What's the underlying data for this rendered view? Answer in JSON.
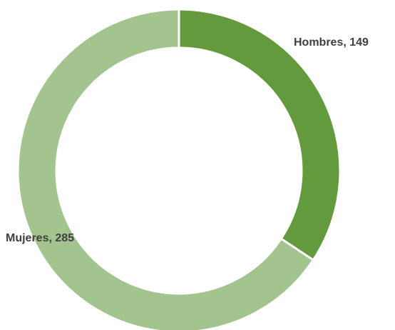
{
  "chart_data": {
    "type": "pie",
    "variant": "donut",
    "title": "",
    "categories": [
      "Hombres",
      "Mujeres"
    ],
    "values": [
      149,
      285
    ],
    "colors": [
      "#629a3d",
      "#a3c48e"
    ],
    "slice_border_color": "#ffffff",
    "data_labels": [
      "Hombres, 149",
      "Mujeres, 285"
    ],
    "start": "12 o'clock",
    "direction": "clockwise",
    "legend": "none"
  }
}
